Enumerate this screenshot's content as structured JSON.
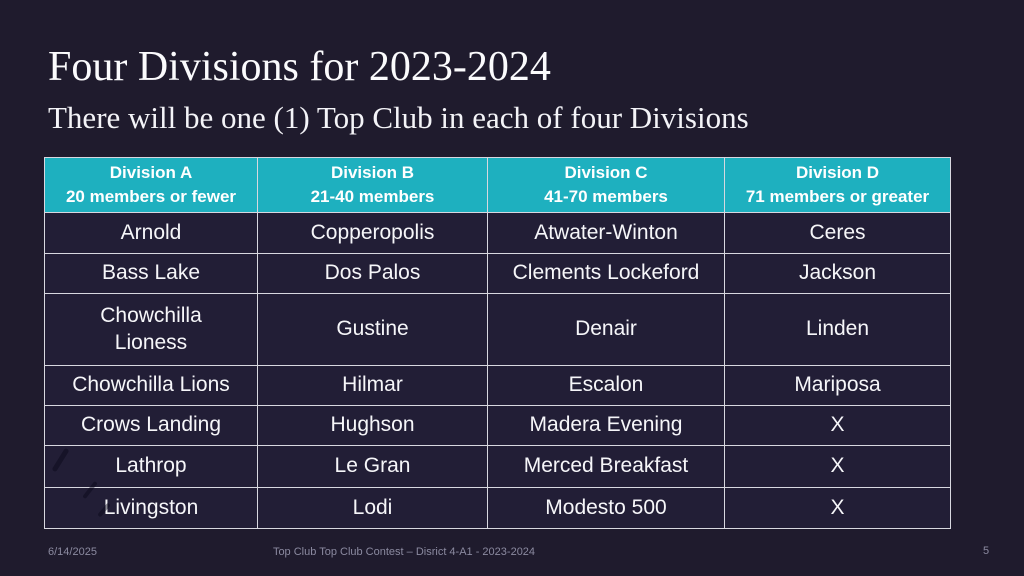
{
  "slide": {
    "title": "Four Divisions for 2023-2024",
    "subtitle": "There will be one (1) Top Club in each of four Divisions"
  },
  "table": {
    "headers": [
      "Division A\n20 members or fewer",
      "Division B\n21-40 members",
      "Division C\n41-70 members",
      "Division D\n71 members or greater"
    ],
    "rows": [
      [
        "Arnold",
        "Copperopolis",
        "Atwater-Winton",
        "Ceres"
      ],
      [
        "Bass Lake",
        "Dos Palos",
        "Clements Lockeford",
        "Jackson"
      ],
      [
        "Chowchilla\nLioness",
        "Gustine",
        "Denair",
        "Linden"
      ],
      [
        "Chowchilla Lions",
        "Hilmar",
        "Escalon",
        "Mariposa"
      ],
      [
        "Crows Landing",
        "Hughson",
        "Madera Evening",
        "X"
      ],
      [
        "Lathrop",
        "Le Gran",
        "Merced Breakfast",
        "X"
      ],
      [
        "Livingston",
        "Lodi",
        "Modesto 500",
        "X"
      ]
    ]
  },
  "footer": {
    "date": "6/14/2025",
    "text": "Top Club Top Club Contest – Disrict 4-A1 - 2023-2024",
    "page_number": "5"
  },
  "colors": {
    "background": "#1f1b2d",
    "cell_background": "#221e36",
    "header_background": "#1eb0bf",
    "border": "#d8d8e0",
    "title_text": "#fbfbfd",
    "footer_text": "#8b8aa0"
  }
}
